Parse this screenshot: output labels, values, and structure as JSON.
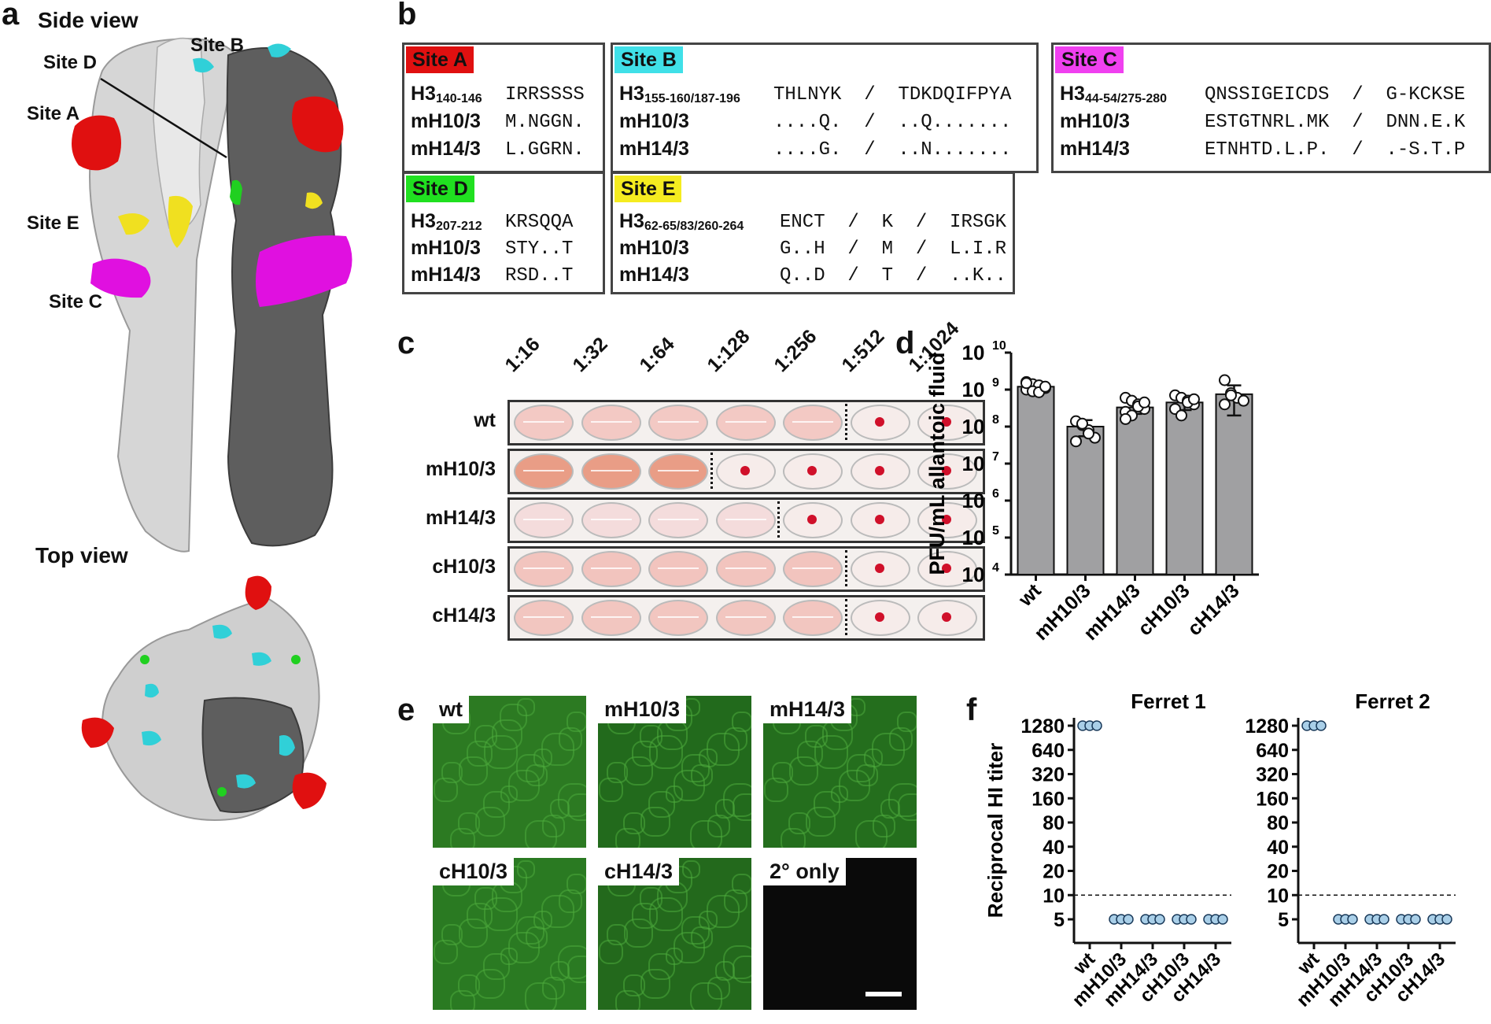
{
  "panel_a": {
    "label": "a",
    "side_title": "Side view",
    "top_title": "Top view",
    "site_labels": [
      "Site A",
      "Site B",
      "Site C",
      "Site D",
      "Site E"
    ],
    "colors": {
      "A": "#e01010",
      "B": "#30d0d8",
      "C": "#e010e0",
      "D": "#20d020",
      "E": "#f0e020",
      "light": "#d8d8d8",
      "dark": "#5a5a5a"
    }
  },
  "panel_b": {
    "label": "b",
    "boxes": [
      {
        "tag": "Site A",
        "color": "#e01010",
        "tag_text_color": "#111",
        "rows": [
          {
            "name": "H3",
            "sub": "140-146",
            "seq": "IRRSSSS"
          },
          {
            "name": "mH10/3",
            "sub": "",
            "seq": "M.NGGN."
          },
          {
            "name": "mH14/3",
            "sub": "",
            "seq": "L.GGRN."
          }
        ]
      },
      {
        "tag": "Site B",
        "color": "#40e0e8",
        "tag_text_color": "#111",
        "rows": [
          {
            "name": "H3",
            "sub": "155-160/187-196",
            "seq": "THLNYK  /  TDKDQIFPYA"
          },
          {
            "name": "mH10/3",
            "sub": "",
            "seq": "....Q.  /  ..Q......."
          },
          {
            "name": "mH14/3",
            "sub": "",
            "seq": "....G.  /  ..N......."
          }
        ]
      },
      {
        "tag": "Site C",
        "color": "#f040f0",
        "tag_text_color": "#111",
        "rows": [
          {
            "name": "H3",
            "sub": "44-54/275-280",
            "seq": "QNSSIGEICDS  /  G-KCKSE"
          },
          {
            "name": "mH10/3",
            "sub": "",
            "seq": "ESTGTNRL.MK  /  DNN.E.K"
          },
          {
            "name": "mH14/3",
            "sub": "",
            "seq": "ETNHTD.L.P.  /  .-S.T.P"
          }
        ]
      },
      {
        "tag": "Site D",
        "color": "#20e020",
        "tag_text_color": "#111",
        "rows": [
          {
            "name": "H3",
            "sub": "207-212",
            "seq": "KRSQQA"
          },
          {
            "name": "mH10/3",
            "sub": "",
            "seq": "STY..T"
          },
          {
            "name": "mH14/3",
            "sub": "",
            "seq": "RSD..T"
          }
        ]
      },
      {
        "tag": "Site E",
        "color": "#f5ec20",
        "tag_text_color": "#111",
        "rows": [
          {
            "name": "H3",
            "sub": "62-65/83/260-264",
            "seq": "ENCT  /  K  /  IRSGK"
          },
          {
            "name": "mH10/3",
            "sub": "",
            "seq": "G..H  /  M  /  L.I.R"
          },
          {
            "name": "mH14/3",
            "sub": "",
            "seq": "Q..D  /  T  /  ..K.."
          }
        ]
      }
    ]
  },
  "panel_c": {
    "label": "c",
    "dilutions": [
      "1:16",
      "1:32",
      "1:64",
      "1:128",
      "1:256",
      "1:512",
      "1:1024"
    ],
    "rows": [
      {
        "name": "wt",
        "buttons": [
          false,
          false,
          false,
          false,
          false,
          true,
          true
        ],
        "divider_after": 4,
        "tint": "#f3c9c4"
      },
      {
        "name": "mH10/3",
        "buttons": [
          false,
          false,
          false,
          true,
          true,
          true,
          true
        ],
        "divider_after": 2,
        "tint": "#e99d86"
      },
      {
        "name": "mH14/3",
        "buttons": [
          false,
          false,
          false,
          false,
          true,
          true,
          true
        ],
        "divider_after": 3,
        "tint": "#f4dcdc"
      },
      {
        "name": "cH10/3",
        "buttons": [
          false,
          false,
          false,
          false,
          false,
          true,
          true
        ],
        "divider_after": 4,
        "tint": "#f2c4be"
      },
      {
        "name": "cH14/3",
        "buttons": [
          false,
          false,
          false,
          false,
          false,
          true,
          true
        ],
        "divider_after": 4,
        "tint": "#f2c6c0"
      }
    ]
  },
  "panel_d": {
    "label": "d",
    "chart_data": {
      "type": "bar",
      "categories": [
        "wt",
        "mH10/3",
        "mH14/3",
        "cH10/3",
        "cH14/3"
      ],
      "values": [
        1200000000.0,
        100000000.0,
        330000000.0,
        450000000.0,
        750000000.0
      ],
      "error_low": [
        900000000.0,
        55000000.0,
        220000000.0,
        280000000.0,
        200000000.0
      ],
      "error_high": [
        1600000000.0,
        150000000.0,
        500000000.0,
        680000000.0,
        1300000000.0
      ],
      "points": [
        [
          1600000000.0,
          1400000000.0,
          1300000000.0,
          1100000000.0,
          1000000000.0,
          900000000.0,
          850000000.0,
          1200000000.0,
          1500000000.0
        ],
        [
          140000000.0,
          110000000.0,
          80000000.0,
          50000000.0,
          40000000.0,
          120000000.0,
          65000000.0
        ],
        [
          600000000.0,
          500000000.0,
          400000000.0,
          300000000.0,
          250000000.0,
          200000000.0,
          350000000.0,
          450000000.0,
          160000000.0
        ],
        [
          700000000.0,
          600000000.0,
          500000000.0,
          400000000.0,
          300000000.0,
          200000000.0,
          450000000.0,
          550000000.0
        ],
        [
          1800000000.0,
          800000000.0,
          600000000.0,
          500000000.0,
          400000000.0,
          700000000.0
        ]
      ],
      "ylabel": "PFU/mL allantoic fluid",
      "y_scale": "log",
      "ylim": [
        10000.0,
        10000000000.0
      ],
      "yticks": [
        "10",
        "10",
        "10",
        "10",
        "10",
        "10",
        "10"
      ],
      "ytick_exps": [
        "4",
        "5",
        "6",
        "7",
        "8",
        "9",
        "10"
      ],
      "bar_color": "#a0a0a2"
    }
  },
  "panel_e": {
    "label": "e",
    "images": [
      {
        "label": "wt",
        "brightness": "#2c7a22"
      },
      {
        "label": "mH10/3",
        "brightness": "#226a1c"
      },
      {
        "label": "mH14/3",
        "brightness": "#246e1d"
      },
      {
        "label": "cH10/3",
        "brightness": "#2a7a22"
      },
      {
        "label": "cH14/3",
        "brightness": "#23691c"
      },
      {
        "label": "2° only",
        "brightness": "#0a0a0a"
      }
    ]
  },
  "panel_f": {
    "label": "f",
    "chart_data": [
      {
        "type": "scatter",
        "title": "Ferret 1",
        "categories": [
          "wt",
          "mH10/3",
          "mH14/3",
          "cH10/3",
          "cH14/3"
        ],
        "values": [
          [
            1280,
            1280,
            1280
          ],
          [
            5,
            5,
            5
          ],
          [
            5,
            5,
            5
          ],
          [
            5,
            5,
            5
          ],
          [
            5,
            5,
            5
          ]
        ],
        "ylabel": "Reciprocal HI titer",
        "y_scale": "log2",
        "yticks": [
          5,
          10,
          20,
          40,
          80,
          160,
          320,
          640,
          1280
        ],
        "threshold": 10,
        "marker_color": "#a9cfe8"
      },
      {
        "type": "scatter",
        "title": "Ferret 2",
        "categories": [
          "wt",
          "mH10/3",
          "mH14/3",
          "cH10/3",
          "cH14/3"
        ],
        "values": [
          [
            1280,
            1280,
            1280
          ],
          [
            5,
            5,
            5
          ],
          [
            5,
            5,
            5
          ],
          [
            5,
            5,
            5
          ],
          [
            5,
            5,
            5
          ]
        ],
        "ylabel": "",
        "y_scale": "log2",
        "yticks": [
          5,
          10,
          20,
          40,
          80,
          160,
          320,
          640,
          1280
        ],
        "threshold": 10,
        "marker_color": "#a9cfe8"
      }
    ]
  }
}
